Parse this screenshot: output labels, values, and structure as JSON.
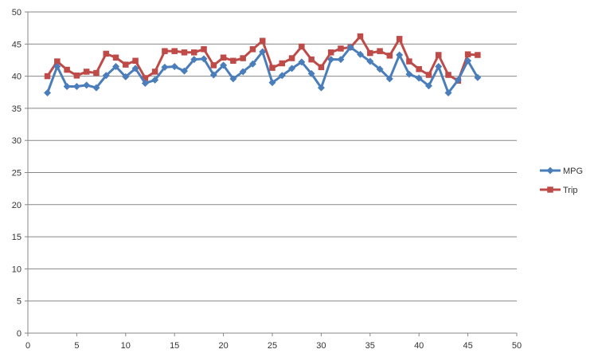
{
  "chart_data": {
    "type": "line",
    "title": "",
    "xlabel": "",
    "ylabel": "",
    "xlim": [
      0,
      50
    ],
    "ylim": [
      0,
      50
    ],
    "x_ticks": [
      0,
      5,
      10,
      15,
      20,
      25,
      30,
      35,
      40,
      45,
      50
    ],
    "y_ticks": [
      0,
      5,
      10,
      15,
      20,
      25,
      30,
      35,
      40,
      45,
      50
    ],
    "grid": "horizontal",
    "legend_position": "right",
    "series": [
      {
        "name": "MPG",
        "color": "#4a7ebb",
        "marker": "diamond",
        "x": [
          2,
          3,
          4,
          5,
          6,
          7,
          8,
          9,
          10,
          11,
          12,
          13,
          14,
          15,
          16,
          17,
          18,
          19,
          20,
          21,
          22,
          23,
          24,
          25,
          26,
          27,
          28,
          29,
          30,
          31,
          32,
          33,
          34,
          35,
          36,
          37,
          38,
          39,
          40,
          41,
          42,
          43,
          44,
          45,
          46
        ],
        "values": [
          37.4,
          41.5,
          38.4,
          38.4,
          38.6,
          38.2,
          40.1,
          41.5,
          39.9,
          41.2,
          38.9,
          39.4,
          41.4,
          41.5,
          40.8,
          42.6,
          42.7,
          40.2,
          41.7,
          39.6,
          40.7,
          41.9,
          43.8,
          39.0,
          40.1,
          41.2,
          42.2,
          40.4,
          38.2,
          42.6,
          42.6,
          44.5,
          43.4,
          42.3,
          41.1,
          39.6,
          43.3,
          40.3,
          39.7,
          38.5,
          41.5,
          37.4,
          39.4,
          42.4,
          39.8
        ]
      },
      {
        "name": "Trip",
        "color": "#be4b48",
        "marker": "square",
        "x": [
          2,
          3,
          4,
          5,
          6,
          7,
          8,
          9,
          10,
          11,
          12,
          13,
          14,
          15,
          16,
          17,
          18,
          19,
          20,
          21,
          22,
          23,
          24,
          25,
          26,
          27,
          28,
          29,
          30,
          31,
          32,
          33,
          34,
          35,
          36,
          37,
          38,
          39,
          40,
          41,
          42,
          43,
          44,
          45,
          46
        ],
        "values": [
          40.0,
          42.3,
          41.0,
          40.1,
          40.7,
          40.5,
          43.5,
          42.9,
          41.8,
          42.4,
          39.7,
          40.7,
          43.9,
          43.9,
          43.7,
          43.7,
          44.2,
          41.7,
          42.9,
          42.4,
          42.8,
          44.2,
          45.5,
          41.3,
          42.0,
          42.8,
          44.6,
          42.6,
          41.4,
          43.7,
          44.3,
          44.5,
          46.2,
          43.6,
          43.9,
          43.2,
          45.8,
          42.3,
          41.1,
          40.2,
          43.3,
          40.2,
          39.3,
          43.4,
          43.3
        ]
      }
    ]
  }
}
